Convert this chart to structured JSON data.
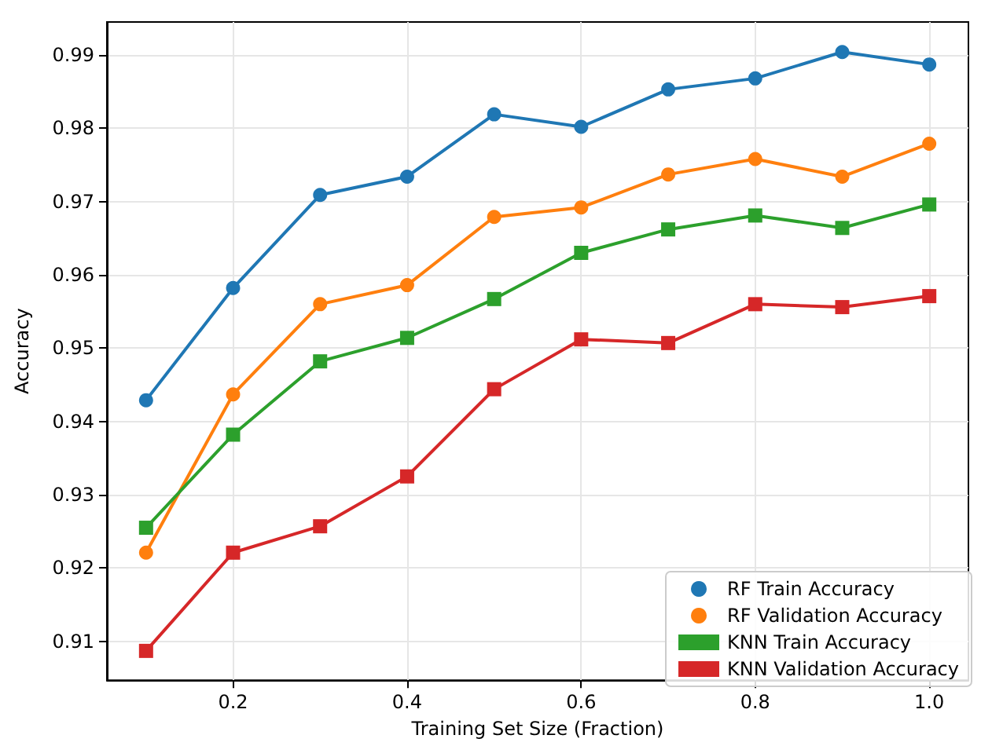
{
  "chart_data": {
    "type": "line",
    "xlabel": "Training Set Size (Fraction)",
    "ylabel": "Accuracy",
    "x": [
      0.1,
      0.2,
      0.3,
      0.4,
      0.5,
      0.6,
      0.7,
      0.8,
      0.9,
      1.0
    ],
    "series": [
      {
        "name": "RF Train Accuracy",
        "color": "#1f77b4",
        "marker": "circle",
        "values": [
          0.9429,
          0.9582,
          0.9709,
          0.9734,
          0.9819,
          0.9802,
          0.9853,
          0.9868,
          0.9904,
          0.9887
        ]
      },
      {
        "name": "RF Validation Accuracy",
        "color": "#ff7f0e",
        "marker": "circle",
        "values": [
          0.9221,
          0.9437,
          0.956,
          0.9586,
          0.9679,
          0.9692,
          0.9737,
          0.9758,
          0.9734,
          0.9779
        ]
      },
      {
        "name": "KNN Train Accuracy",
        "color": "#2ca02c",
        "marker": "square",
        "values": [
          0.9255,
          0.9382,
          0.9482,
          0.9514,
          0.9567,
          0.963,
          0.9662,
          0.9681,
          0.9664,
          0.9696
        ]
      },
      {
        "name": "KNN Validation Accuracy",
        "color": "#d62728",
        "marker": "square",
        "values": [
          0.9087,
          0.9221,
          0.9257,
          0.9325,
          0.9444,
          0.9512,
          0.9507,
          0.956,
          0.9556,
          0.9571
        ]
      }
    ],
    "xlim": [
      0.055,
      1.045
    ],
    "xticks": [
      0.2,
      0.4,
      0.6,
      0.8,
      {
        "value": 1,
        "label": "1.0"
      }
    ],
    "ylim": [
      0.9047,
      0.9945
    ],
    "yticks": [
      0.91,
      0.92,
      0.93,
      0.94,
      0.95,
      0.96,
      0.97,
      0.98,
      0.99
    ],
    "grid": true,
    "legend": "bottom right",
    "line_style": "solid"
  }
}
